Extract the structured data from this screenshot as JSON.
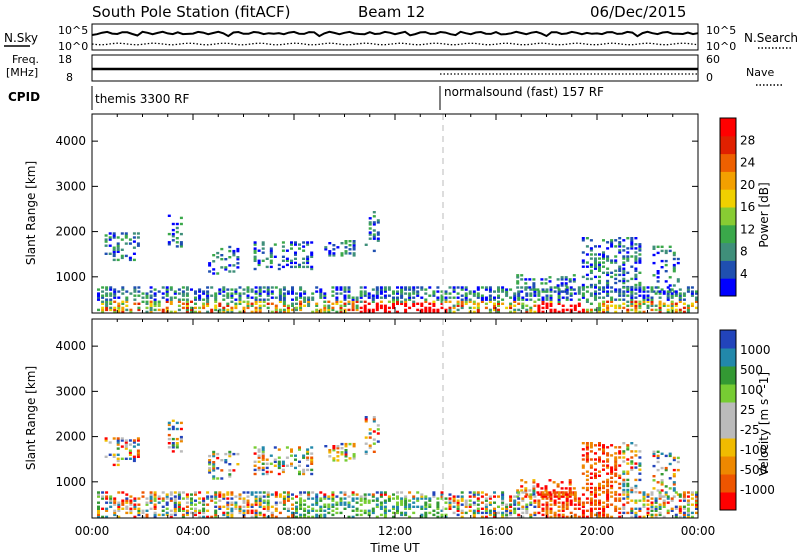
{
  "header": {
    "station": "South Pole Station (fitACF)",
    "beam": "Beam 12",
    "date": "06/Dec/2015"
  },
  "summary": {
    "nsky": {
      "label": "N.Sky",
      "top_label": "10^5",
      "bottom_label": "10^0"
    },
    "nsearch": {
      "label": "N.Search",
      "top_label": "10^5",
      "bottom_label": "10^0"
    },
    "freq": {
      "label_line1": "Freq.",
      "label_line2": "[MHz]",
      "top_label": "18",
      "bottom_label": "8"
    },
    "nave": {
      "label": "Nave",
      "top_label": "60",
      "bottom_label": "0"
    },
    "cpid": {
      "label": "CPID",
      "modes": [
        {
          "label": "themis 3300 RF",
          "start_hour": 0
        },
        {
          "label": "normalsound (fast) 157 RF",
          "start_hour": 14
        }
      ]
    }
  },
  "colors": {
    "power_scale": [
      "#0000ff",
      "#1f4fb0",
      "#3f8f7a",
      "#3aa84a",
      "#88cc33",
      "#f0d000",
      "#f3a000",
      "#ee6000",
      "#e02000",
      "#ff0000"
    ],
    "velocity_scale": [
      "#ff0000",
      "#ee5500",
      "#ee8800",
      "#f0bb00",
      "#bbbbbb",
      "#bbbbbb",
      "#77cc33",
      "#339933",
      "#2288aa",
      "#2244bb"
    ]
  },
  "chart_data": [
    {
      "type": "heatmap",
      "panel": "power",
      "xlabel": "",
      "ylabel": "Slant Range [km]",
      "yticks": [
        "1000",
        "2000",
        "3000",
        "4000"
      ],
      "ylim": [
        200,
        4600
      ],
      "xlim_hours": [
        0,
        24
      ],
      "colorbar": {
        "label": "Power [dB]",
        "ticks": [
          "4",
          "8",
          "12",
          "16",
          "20",
          "24",
          "28"
        ],
        "range": [
          0,
          32
        ]
      }
    },
    {
      "type": "heatmap",
      "panel": "velocity",
      "xlabel": "Time UT",
      "ylabel": "Slant Range [km]",
      "yticks": [
        "1000",
        "2000",
        "3000",
        "4000"
      ],
      "ylim": [
        200,
        4600
      ],
      "xlim_hours": [
        0,
        24
      ],
      "xticks": [
        "00:00",
        "04:00",
        "08:00",
        "12:00",
        "16:00",
        "20:00",
        "00:00"
      ],
      "colorbar": {
        "label": "Velocity [m s^-1]",
        "ticks": [
          "1000",
          "500",
          "100",
          "25",
          "-25",
          "-100",
          "-500",
          "-1000"
        ]
      }
    }
  ]
}
